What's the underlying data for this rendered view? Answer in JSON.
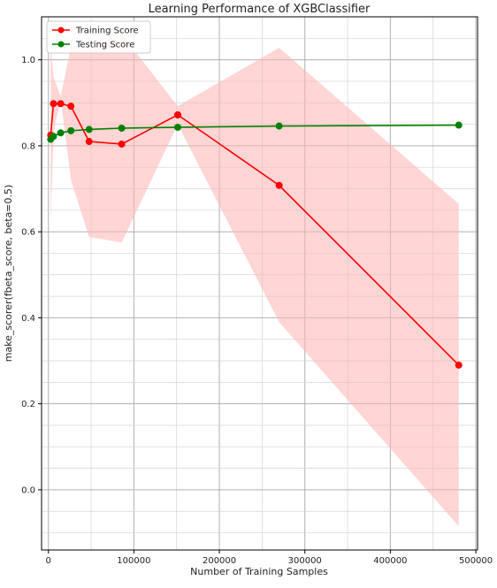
{
  "chart_data": {
    "type": "line",
    "title": "Learning Performance of XGBClassifier",
    "xlabel": "Number of Training Samples",
    "ylabel": "make_scorer(fbeta_score, beta=0.5)",
    "xlim": [
      -8000,
      502000
    ],
    "ylim": [
      -0.14,
      1.1
    ],
    "xticks": [
      0,
      100000,
      200000,
      300000,
      400000,
      500000
    ],
    "xtick_labels": [
      "0",
      "100000",
      "200000",
      "300000",
      "400000",
      "500000"
    ],
    "yticks": [
      0.0,
      0.2,
      0.4,
      0.6,
      0.8,
      1.0
    ],
    "ytick_labels": [
      "0.0",
      "0.2",
      "0.4",
      "0.6",
      "0.8",
      "1.0"
    ],
    "grid": true,
    "legend": {
      "position": "top-left"
    },
    "x": [
      2700,
      5900,
      14300,
      26400,
      47600,
      85700,
      151300,
      269900,
      480000
    ],
    "series": [
      {
        "name": "Training Score",
        "color": "#ff0000",
        "marker_color": "#ff0000",
        "values": [
          0.825,
          0.898,
          0.898,
          0.892,
          0.81,
          0.804,
          0.872,
          0.708,
          0.29
        ],
        "band_lower": [
          0.608,
          0.83,
          0.91,
          0.72,
          0.588,
          0.575,
          0.85,
          0.39,
          -0.085
        ],
        "band_upper": [
          1.04,
          0.96,
          0.915,
          1.03,
          1.03,
          1.06,
          0.892,
          1.028,
          0.665
        ],
        "band_color": "#ffb3b3"
      },
      {
        "name": "Testing Score",
        "color": "#008000",
        "marker_color": "#008000",
        "values": [
          0.815,
          0.822,
          0.83,
          0.835,
          0.838,
          0.841,
          0.843,
          0.846,
          0.848
        ]
      }
    ]
  }
}
